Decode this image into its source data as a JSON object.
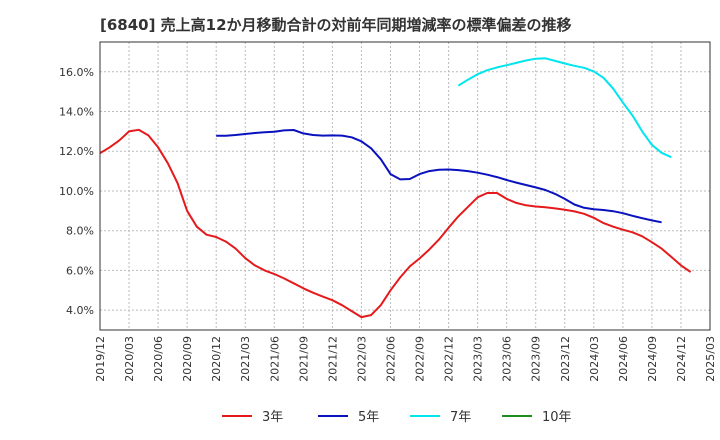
{
  "chart_data": {
    "type": "line",
    "title": "[6840]  売上高12か月移動合計の対前年同期増減率の標準偏差の推移",
    "xlabel": "",
    "ylabel": "",
    "ylim": [
      3.0,
      17.5
    ],
    "y_ticks": [
      4.0,
      6.0,
      8.0,
      10.0,
      12.0,
      14.0,
      16.0
    ],
    "y_tick_labels": [
      "4.0%",
      "6.0%",
      "8.0%",
      "10.0%",
      "12.0%",
      "14.0%",
      "16.0%"
    ],
    "x_tick_labels": [
      "2019/12",
      "2020/03",
      "2020/06",
      "2020/09",
      "2020/12",
      "2021/03",
      "2021/06",
      "2021/09",
      "2021/12",
      "2022/03",
      "2022/06",
      "2022/09",
      "2022/12",
      "2023/03",
      "2023/06",
      "2023/09",
      "2023/12",
      "2024/03",
      "2024/06",
      "2024/09",
      "2024/12",
      "2025/03"
    ],
    "grid": true,
    "legend_position": "bottom",
    "series": [
      {
        "name": "3年",
        "color": "#e41a1c",
        "values": [
          11.9,
          12.2,
          12.55,
          13.0,
          13.08,
          12.8,
          12.2,
          11.4,
          10.4,
          9.0,
          8.2,
          7.8,
          7.68,
          7.45,
          7.1,
          6.62,
          6.25,
          6.0,
          5.82,
          5.6,
          5.35,
          5.1,
          4.88,
          4.68,
          4.5,
          4.25,
          3.95,
          3.65,
          3.75,
          4.25,
          5.0,
          5.65,
          6.2,
          6.6,
          7.05,
          7.55,
          8.15,
          8.72,
          9.2,
          9.68,
          9.9,
          9.9,
          9.6,
          9.4,
          9.28,
          9.22,
          9.18,
          9.12,
          9.05,
          8.97,
          8.85,
          8.65,
          8.38,
          8.2,
          8.05,
          7.92,
          7.72,
          7.42,
          7.1,
          6.68,
          6.25,
          5.92
        ]
      },
      {
        "name": "5年",
        "color": "#0a12be",
        "start_index": 12,
        "values": [
          12.78,
          12.78,
          12.82,
          12.87,
          12.92,
          12.96,
          12.98,
          13.05,
          13.07,
          12.9,
          12.82,
          12.79,
          12.8,
          12.79,
          12.7,
          12.5,
          12.15,
          11.6,
          10.85,
          10.58,
          10.6,
          10.85,
          11.0,
          11.07,
          11.08,
          11.05,
          11.0,
          10.92,
          10.82,
          10.7,
          10.55,
          10.42,
          10.3,
          10.18,
          10.05,
          9.85,
          9.6,
          9.32,
          9.15,
          9.08,
          9.04,
          8.98,
          8.88,
          8.75,
          8.63,
          8.52,
          8.42
        ]
      },
      {
        "name": "7年",
        "color": "#00e5ee",
        "start_index": 37,
        "values": [
          15.3,
          15.6,
          15.88,
          16.08,
          16.22,
          16.33,
          16.45,
          16.57,
          16.66,
          16.68,
          16.55,
          16.42,
          16.3,
          16.2,
          16.02,
          15.7,
          15.15,
          14.45,
          13.8,
          13.0,
          12.32,
          11.92,
          11.7
        ]
      },
      {
        "name": "10年",
        "color": "#1e8c1e",
        "values": []
      }
    ]
  }
}
